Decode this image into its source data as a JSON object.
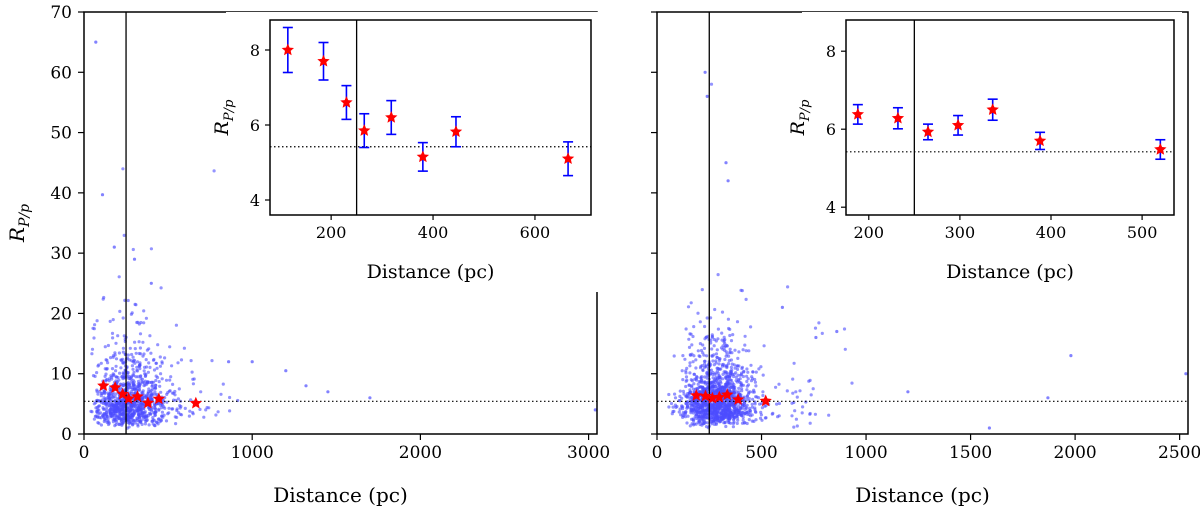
{
  "chart_data": [
    {
      "type": "scatter",
      "panel": "left",
      "xlabel": "Distance (pc)",
      "ylabel": "R",
      "ylabel_sub": "P/p",
      "xlim": [
        0,
        3050
      ],
      "ylim": [
        0,
        70
      ],
      "xticks": [
        0,
        1000,
        2000,
        3000
      ],
      "xtick_labels": [
        "0",
        "1000",
        "2000",
        "3000"
      ],
      "yticks": [
        0,
        10,
        20,
        30,
        40,
        50,
        60,
        70
      ],
      "ytick_labels": [
        "0",
        "10",
        "20",
        "30",
        "40",
        "50",
        "60",
        "70"
      ],
      "vline_x": 250,
      "hline_y": 5.42,
      "scatter_color": "#4d4dff",
      "scatter_count": 1100,
      "scatter_center_x": 260,
      "scatter_outliers": [
        [
          70,
          65
        ],
        [
          110,
          39.7
        ],
        [
          180,
          31
        ],
        [
          300,
          29
        ],
        [
          400,
          25
        ],
        [
          860,
          12
        ],
        [
          1000,
          12
        ],
        [
          1200,
          10.5
        ],
        [
          1320,
          8
        ],
        [
          1450,
          7
        ],
        [
          1700,
          6
        ],
        [
          3040,
          4
        ]
      ],
      "binned_x": [
        115,
        185,
        230,
        265,
        318,
        380,
        445,
        665
      ],
      "binned_y": [
        8.0,
        7.7,
        6.6,
        5.85,
        6.2,
        5.15,
        5.82,
        5.1
      ],
      "binned_err": [
        0.6,
        0.5,
        0.45,
        0.45,
        0.45,
        0.38,
        0.4,
        0.45
      ],
      "binned_color": "#ff0000",
      "error_color": "#0000ff",
      "inset": {
        "xlabel": "Distance (pc)",
        "ylabel": "R",
        "ylabel_sub": "P/p",
        "xlim": [
          80,
          710
        ],
        "ylim": [
          3.6,
          8.8
        ],
        "xticks": [
          200,
          400,
          600
        ],
        "xtick_labels": [
          "200",
          "400",
          "600"
        ],
        "yticks": [
          4,
          6,
          8
        ],
        "ytick_labels": [
          "4",
          "6",
          "8"
        ]
      }
    },
    {
      "type": "scatter",
      "panel": "right",
      "xlabel": "Distance (pc)",
      "ylabel": "",
      "xlim": [
        0,
        2540
      ],
      "ylim": [
        0,
        70
      ],
      "xticks": [
        0,
        500,
        1000,
        1500,
        2000,
        2500
      ],
      "xtick_labels": [
        "0",
        "500",
        "1000",
        "1500",
        "2000",
        "2500"
      ],
      "yticks": [
        0,
        10,
        20,
        30,
        40,
        50,
        60,
        70
      ],
      "vline_x": 250,
      "hline_y": 5.42,
      "scatter_color": "#4d4dff",
      "scatter_count": 1400,
      "scatter_center_x": 280,
      "scatter_outliers": [
        [
          230,
          60
        ],
        [
          240,
          56
        ],
        [
          330,
          45
        ],
        [
          340,
          42
        ],
        [
          860,
          17
        ],
        [
          1200,
          7
        ],
        [
          1590,
          1
        ],
        [
          1980,
          13
        ],
        [
          1870,
          6
        ],
        [
          2530,
          10
        ],
        [
          600,
          21
        ],
        [
          760,
          16
        ]
      ],
      "binned_x": [
        188,
        232,
        265,
        298,
        336,
        388,
        520
      ],
      "binned_y": [
        6.38,
        6.28,
        5.93,
        6.1,
        6.5,
        5.7,
        5.48
      ],
      "binned_err": [
        0.25,
        0.27,
        0.2,
        0.25,
        0.27,
        0.22,
        0.25
      ],
      "binned_color": "#ff0000",
      "error_color": "#0000ff",
      "inset": {
        "xlabel": "Distance (pc)",
        "ylabel": "R",
        "ylabel_sub": "P/p",
        "xlim": [
          175,
          535
        ],
        "ylim": [
          3.8,
          8.8
        ],
        "xticks": [
          200,
          300,
          400,
          500
        ],
        "xtick_labels": [
          "200",
          "300",
          "400",
          "500"
        ],
        "yticks": [
          4,
          6,
          8
        ],
        "ytick_labels": [
          "4",
          "6",
          "8"
        ]
      }
    }
  ]
}
